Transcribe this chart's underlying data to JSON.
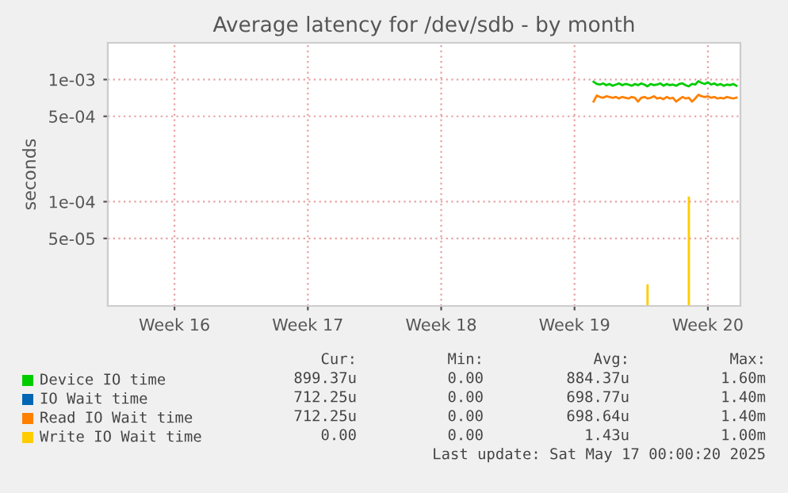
{
  "chart_data": {
    "type": "line",
    "title": "Average latency for /dev/sdb - by month",
    "ylabel": "seconds",
    "x": [
      "2025-05-09T12:00",
      "2025-05-09T16:00",
      "2025-05-09T20:00",
      "2025-05-10T00:00",
      "2025-05-10T04:00",
      "2025-05-10T08:00",
      "2025-05-10T12:00",
      "2025-05-10T16:00",
      "2025-05-10T20:00",
      "2025-05-11T00:00",
      "2025-05-11T04:00",
      "2025-05-11T08:00",
      "2025-05-11T12:00",
      "2025-05-11T16:00",
      "2025-05-11T20:00",
      "2025-05-12T00:00",
      "2025-05-12T04:00",
      "2025-05-12T08:00",
      "2025-05-12T12:00",
      "2025-05-12T16:00",
      "2025-05-12T20:00",
      "2025-05-13T00:00",
      "2025-05-13T04:00",
      "2025-05-13T08:00",
      "2025-05-13T12:00",
      "2025-05-13T16:00",
      "2025-05-13T20:00",
      "2025-05-14T00:00",
      "2025-05-14T04:00",
      "2025-05-14T08:00",
      "2025-05-14T12:00",
      "2025-05-14T16:00",
      "2025-05-14T20:00",
      "2025-05-15T00:00",
      "2025-05-15T04:00",
      "2025-05-15T08:00",
      "2025-05-15T12:00",
      "2025-05-15T16:00",
      "2025-05-15T20:00",
      "2025-05-16T00:00",
      "2025-05-16T04:00",
      "2025-05-16T08:00",
      "2025-05-16T12:00",
      "2025-05-16T16:00",
      "2025-05-16T20:00",
      "2025-05-17T00:00"
    ],
    "series": [
      {
        "name": "Device IO time",
        "color": "#00cc00",
        "values": [
          0.00096,
          0.00092,
          0.00091,
          0.00093,
          0.0009,
          0.00092,
          0.00089,
          0.00091,
          0.00093,
          0.0009,
          0.00092,
          0.00091,
          0.00089,
          0.00092,
          0.0009,
          0.00093,
          0.00091,
          0.00088,
          0.00092,
          0.0009,
          0.00091,
          0.00093,
          0.00089,
          0.00092,
          0.0009,
          0.00091,
          0.00089,
          0.00092,
          0.00093,
          0.0009,
          0.00088,
          0.00092,
          0.00091,
          0.00097,
          0.00094,
          0.00092,
          0.00095,
          0.00091,
          0.00093,
          0.0009,
          0.00092,
          0.00089,
          0.00091,
          0.0009,
          0.00092,
          0.00089
        ]
      },
      {
        "name": "IO Wait time",
        "color": "#0066b3",
        "values": [
          null,
          null,
          null,
          null,
          null,
          null,
          null,
          null,
          null,
          null,
          null,
          null,
          null,
          null,
          null,
          null,
          null,
          null,
          null,
          null,
          null,
          null,
          null,
          null,
          null,
          null,
          null,
          null,
          null,
          null,
          null,
          null,
          null,
          null,
          null,
          null,
          null,
          null,
          null,
          null,
          null,
          null,
          null,
          null,
          null,
          null
        ]
      },
      {
        "name": "Read IO Wait time",
        "color": "#ff8000",
        "values": [
          0.00066,
          0.00074,
          0.00072,
          0.00071,
          0.00073,
          0.00072,
          0.00071,
          0.00072,
          0.0007,
          0.00072,
          0.00071,
          0.0007,
          0.00072,
          0.00071,
          0.00066,
          0.00071,
          0.00072,
          0.0007,
          0.00071,
          0.00073,
          0.0007,
          0.00071,
          0.00069,
          0.00072,
          0.0007,
          0.00071,
          0.00066,
          0.00069,
          0.00072,
          0.0007,
          0.00071,
          0.00066,
          0.0007,
          0.00075,
          0.00073,
          0.00072,
          0.00073,
          0.00071,
          0.00072,
          0.0007,
          0.00071,
          0.0007,
          0.00072,
          0.00071,
          0.0007,
          0.00071
        ]
      },
      {
        "name": "Write IO Wait time",
        "type": "bar",
        "color": "#ffcc00",
        "values": [
          null,
          null,
          null,
          null,
          null,
          null,
          null,
          null,
          null,
          null,
          null,
          null,
          null,
          null,
          null,
          null,
          null,
          2.1e-05,
          null,
          null,
          null,
          null,
          null,
          null,
          null,
          null,
          null,
          null,
          null,
          null,
          0.00011,
          null,
          null,
          null,
          null,
          null,
          null,
          null,
          null,
          null,
          null,
          null,
          null,
          null,
          null,
          null
        ]
      }
    ],
    "xlim": [
      "2025-04-14T00:00",
      "2025-05-17T05:00"
    ],
    "xticks": [
      {
        "value": "2025-04-17T12:00",
        "label": "Week 16"
      },
      {
        "value": "2025-04-24T12:00",
        "label": "Week 17"
      },
      {
        "value": "2025-05-01T12:00",
        "label": "Week 18"
      },
      {
        "value": "2025-05-08T12:00",
        "label": "Week 19"
      },
      {
        "value": "2025-05-15T12:00",
        "label": "Week 20"
      }
    ],
    "ylim": [
      1.4e-05,
      0.002
    ],
    "yticks": [
      {
        "value": 0.001,
        "label": "1e-03"
      },
      {
        "value": 0.0005,
        "label": "5e-04"
      },
      {
        "value": 0.0001,
        "label": "1e-04"
      },
      {
        "value": 5e-05,
        "label": "5e-05"
      }
    ],
    "log": true,
    "grid": true,
    "legend": "bottom",
    "annotations": [
      "Cur:",
      "Min:",
      "Avg:",
      "Max:",
      "899.37u",
      "0.00",
      "884.37u",
      "1.60m",
      "712.25u",
      "0.00",
      "698.77u",
      "1.40m",
      "712.25u",
      "0.00",
      "698.64u",
      "1.40m",
      "0.00",
      "0.00",
      "1.43u",
      "1.00m",
      "Last update: Sat May 17 00:00:20 2025"
    ]
  }
}
